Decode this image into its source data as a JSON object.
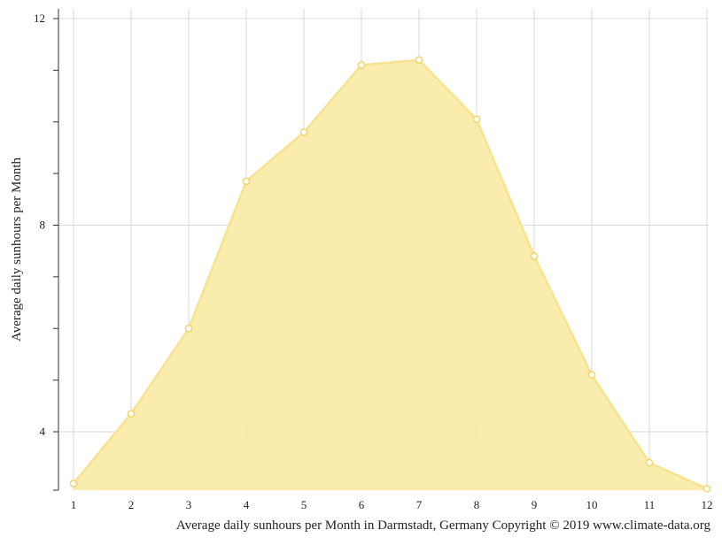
{
  "chart_data": {
    "type": "area",
    "title": "",
    "ylabel": "Average daily sunhours per Month",
    "caption": "Average daily sunhours per Month in Darmstadt, Germany Copyright © 2019 www.climate-data.org",
    "x": [
      1,
      2,
      3,
      4,
      5,
      6,
      7,
      8,
      9,
      10,
      11,
      12
    ],
    "x_tick_labels": [
      "1",
      "2",
      "3",
      "4",
      "5",
      "6",
      "7",
      "8",
      "9",
      "10",
      "11",
      "12"
    ],
    "y_tick_labels": [
      "4",
      "8",
      "12"
    ],
    "y_ticks_labeled": [
      4,
      8,
      12
    ],
    "y_minor_ticks": [
      5,
      6,
      7,
      9,
      10,
      11
    ],
    "series": [
      {
        "values": [
          3.0,
          4.35,
          6.0,
          8.85,
          9.8,
          11.1,
          11.2,
          10.05,
          7.4,
          5.1,
          3.4,
          2.9
        ]
      }
    ],
    "xlim": [
      1,
      12
    ],
    "ylim": [
      2.9,
      12.2
    ],
    "grid": true,
    "colors": {
      "fill": "#f9eba9",
      "line": "#f7e38e",
      "marker_fill": "#ffffff",
      "marker_stroke": "#f2d46a",
      "grid": "#d9d9d9",
      "axis": "#333333"
    }
  }
}
